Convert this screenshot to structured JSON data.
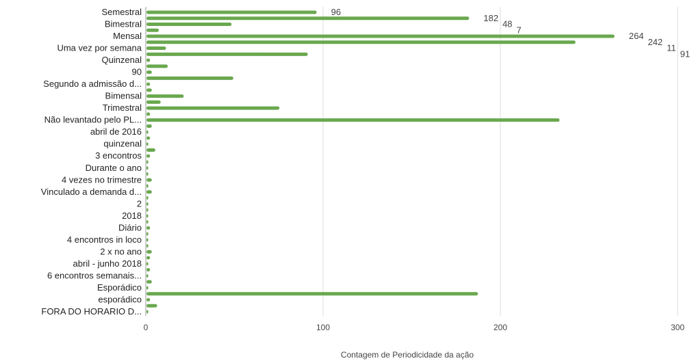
{
  "chart_data": {
    "type": "bar",
    "orientation": "horizontal",
    "xlabel": "Contagem de Periodicidade da ação",
    "ylabel": "",
    "xlim": [
      0,
      300
    ],
    "xticks": [
      "0",
      "100",
      "200",
      "300"
    ],
    "grid": true,
    "bar_color": "#6aa84f",
    "categories": [
      "Semestral",
      "",
      "Bimestral",
      "",
      "Mensal",
      "",
      "Uma vez por semana",
      "",
      "Quinzenal",
      "",
      "90",
      "",
      "Segundo a admissão d...",
      "",
      "Bimensal",
      "",
      "Trimestral",
      "",
      "Não levantado pelo PL...",
      "",
      "abril de 2016",
      "",
      "quinzenal",
      "",
      "3 encontros",
      "",
      "Durante o ano",
      "",
      "4 vezes no trimestre",
      "",
      "Vinculado a demanda d...",
      "",
      "2",
      "",
      "2018",
      "",
      "Diário",
      "",
      "4 encontros in loco",
      "",
      "2 x no ano",
      "",
      "abril - junho 2018",
      "",
      "6 encontros semanais...",
      "",
      "Esporádico",
      "",
      "esporádico",
      "",
      "FORA DO HORARIO D..."
    ],
    "values": [
      96,
      182,
      48,
      7,
      264,
      242,
      11,
      91,
      2,
      12,
      3,
      49,
      2,
      3,
      21,
      8,
      75,
      2,
      233,
      3,
      1,
      2,
      1,
      5,
      2,
      1,
      1,
      1,
      3,
      1,
      3,
      1,
      1,
      1,
      1,
      1,
      2,
      1,
      1,
      1,
      3,
      2,
      1,
      2,
      1,
      3,
      1,
      187,
      2,
      6,
      1
    ]
  }
}
